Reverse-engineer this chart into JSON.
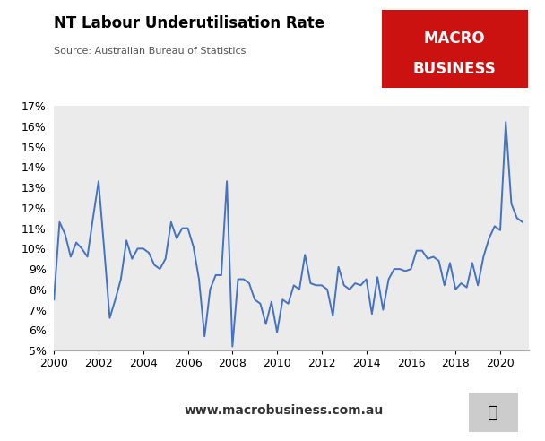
{
  "title": "NT Labour Underutilisation Rate",
  "source": "Source: Australian Bureau of Statistics",
  "line_color": "#4472C4",
  "background_color": "#EBEBEB",
  "outer_background": "#FFFFFF",
  "ylim": [
    0.05,
    0.17
  ],
  "yticks": [
    0.05,
    0.06,
    0.07,
    0.08,
    0.09,
    0.1,
    0.11,
    0.12,
    0.13,
    0.14,
    0.15,
    0.16,
    0.17
  ],
  "xlim": [
    2000,
    2021.3
  ],
  "xticks": [
    2000,
    2002,
    2004,
    2006,
    2008,
    2010,
    2012,
    2014,
    2016,
    2018,
    2020
  ],
  "website": "www.macrobusiness.com.au",
  "macro_box_color": "#CC1111",
  "data": [
    [
      2000.0,
      0.075
    ],
    [
      2000.25,
      0.113
    ],
    [
      2000.5,
      0.107
    ],
    [
      2000.75,
      0.096
    ],
    [
      2001.0,
      0.103
    ],
    [
      2001.25,
      0.1
    ],
    [
      2001.5,
      0.096
    ],
    [
      2001.75,
      0.115
    ],
    [
      2002.0,
      0.133
    ],
    [
      2002.25,
      0.1
    ],
    [
      2002.5,
      0.066
    ],
    [
      2002.75,
      0.075
    ],
    [
      2003.0,
      0.085
    ],
    [
      2003.25,
      0.104
    ],
    [
      2003.5,
      0.095
    ],
    [
      2003.75,
      0.1
    ],
    [
      2004.0,
      0.1
    ],
    [
      2004.25,
      0.098
    ],
    [
      2004.5,
      0.092
    ],
    [
      2004.75,
      0.09
    ],
    [
      2005.0,
      0.095
    ],
    [
      2005.25,
      0.113
    ],
    [
      2005.5,
      0.105
    ],
    [
      2005.75,
      0.11
    ],
    [
      2006.0,
      0.11
    ],
    [
      2006.25,
      0.101
    ],
    [
      2006.5,
      0.085
    ],
    [
      2006.75,
      0.057
    ],
    [
      2007.0,
      0.08
    ],
    [
      2007.25,
      0.087
    ],
    [
      2007.5,
      0.087
    ],
    [
      2007.75,
      0.133
    ],
    [
      2008.0,
      0.052
    ],
    [
      2008.25,
      0.085
    ],
    [
      2008.5,
      0.085
    ],
    [
      2008.75,
      0.083
    ],
    [
      2009.0,
      0.075
    ],
    [
      2009.25,
      0.073
    ],
    [
      2009.5,
      0.063
    ],
    [
      2009.75,
      0.074
    ],
    [
      2010.0,
      0.059
    ],
    [
      2010.25,
      0.075
    ],
    [
      2010.5,
      0.073
    ],
    [
      2010.75,
      0.082
    ],
    [
      2011.0,
      0.08
    ],
    [
      2011.25,
      0.097
    ],
    [
      2011.5,
      0.083
    ],
    [
      2011.75,
      0.082
    ],
    [
      2012.0,
      0.082
    ],
    [
      2012.25,
      0.08
    ],
    [
      2012.5,
      0.067
    ],
    [
      2012.75,
      0.091
    ],
    [
      2013.0,
      0.082
    ],
    [
      2013.25,
      0.08
    ],
    [
      2013.5,
      0.083
    ],
    [
      2013.75,
      0.082
    ],
    [
      2014.0,
      0.085
    ],
    [
      2014.25,
      0.068
    ],
    [
      2014.5,
      0.086
    ],
    [
      2014.75,
      0.07
    ],
    [
      2015.0,
      0.085
    ],
    [
      2015.25,
      0.09
    ],
    [
      2015.5,
      0.09
    ],
    [
      2015.75,
      0.089
    ],
    [
      2016.0,
      0.09
    ],
    [
      2016.25,
      0.099
    ],
    [
      2016.5,
      0.099
    ],
    [
      2016.75,
      0.095
    ],
    [
      2017.0,
      0.096
    ],
    [
      2017.25,
      0.094
    ],
    [
      2017.5,
      0.082
    ],
    [
      2017.75,
      0.093
    ],
    [
      2018.0,
      0.08
    ],
    [
      2018.25,
      0.083
    ],
    [
      2018.5,
      0.081
    ],
    [
      2018.75,
      0.093
    ],
    [
      2019.0,
      0.082
    ],
    [
      2019.25,
      0.096
    ],
    [
      2019.5,
      0.105
    ],
    [
      2019.75,
      0.111
    ],
    [
      2020.0,
      0.109
    ],
    [
      2020.25,
      0.162
    ],
    [
      2020.5,
      0.122
    ],
    [
      2020.75,
      0.115
    ],
    [
      2021.0,
      0.113
    ]
  ]
}
